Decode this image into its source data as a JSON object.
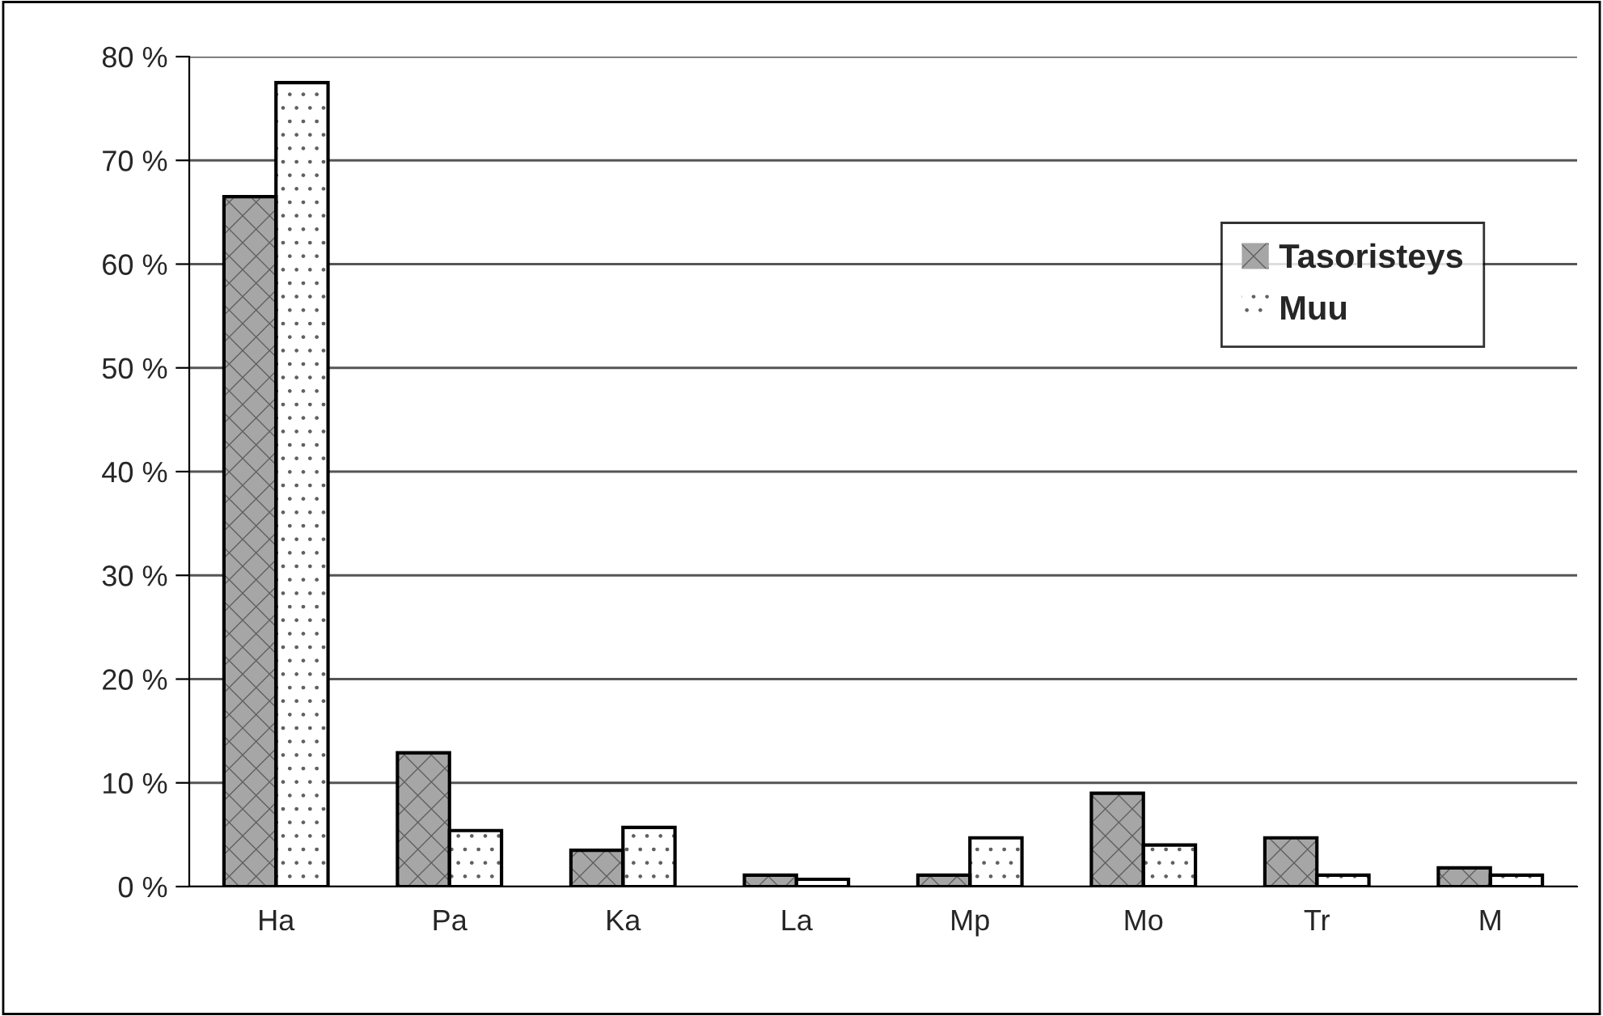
{
  "chart_data": {
    "type": "bar",
    "categories": [
      "Ha",
      "Pa",
      "Ka",
      "La",
      "Mp",
      "Mo",
      "Tr",
      "M"
    ],
    "series": [
      {
        "name": "Tasoristeys",
        "color": "#a6a6a6",
        "values": [
          66.5,
          12.9,
          3.5,
          1.1,
          1.1,
          9.0,
          4.7,
          1.8
        ]
      },
      {
        "name": "Muu",
        "color": "#ffffff",
        "values": [
          77.5,
          5.4,
          5.7,
          0.7,
          4.7,
          4.0,
          1.1,
          1.1
        ]
      }
    ],
    "ylim": [
      0,
      80
    ],
    "yticks": [
      {
        "value": 0,
        "label": "0 %"
      },
      {
        "value": 10,
        "label": "10 %"
      },
      {
        "value": 20,
        "label": "20 %"
      },
      {
        "value": 30,
        "label": "30 %"
      },
      {
        "value": 40,
        "label": "40 %"
      },
      {
        "value": 50,
        "label": "50 %"
      },
      {
        "value": 60,
        "label": "60 %"
      },
      {
        "value": 70,
        "label": "70 %"
      },
      {
        "value": 80,
        "label": "80 %"
      }
    ],
    "grid": "y",
    "legend": "top right"
  }
}
